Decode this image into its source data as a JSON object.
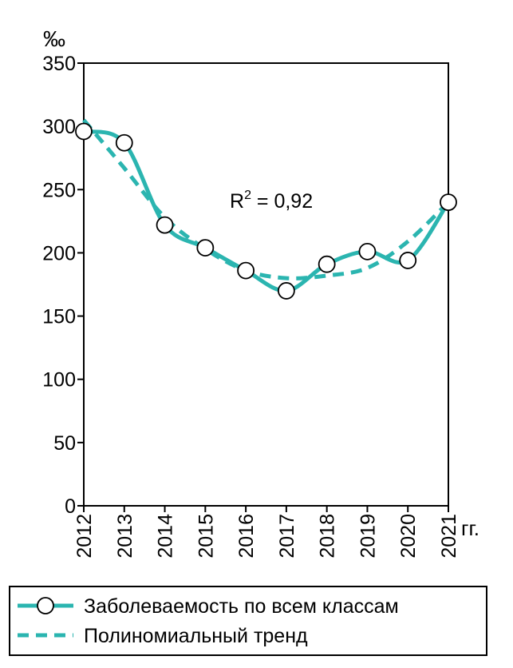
{
  "chart_data": {
    "type": "line",
    "title": "",
    "y_unit_label": "‰",
    "x_unit_label": "гг.",
    "annotation": "R",
    "annotation_sup": "2",
    "annotation_tail": " = 0,92",
    "categories": [
      "2012",
      "2013",
      "2014",
      "2015",
      "2016",
      "2017",
      "2018",
      "2019",
      "2020",
      "2021"
    ],
    "yticks": [
      0,
      50,
      100,
      150,
      200,
      250,
      300,
      350
    ],
    "ylim": [
      0,
      350
    ],
    "grid": false,
    "legend_position": "bottom",
    "series": [
      {
        "name": "Заболеваемость по всем классам",
        "style": "solid-with-circle-markers",
        "color": "#2bb5b0",
        "values": [
          296,
          287,
          222,
          204,
          186,
          170,
          191,
          201,
          194,
          240
        ]
      },
      {
        "name": "Полиномиальный тренд",
        "style": "dashed",
        "color": "#2bb5b0",
        "values": [
          305,
          267,
          228,
          203,
          186,
          180,
          182,
          188,
          209,
          240
        ]
      }
    ]
  }
}
